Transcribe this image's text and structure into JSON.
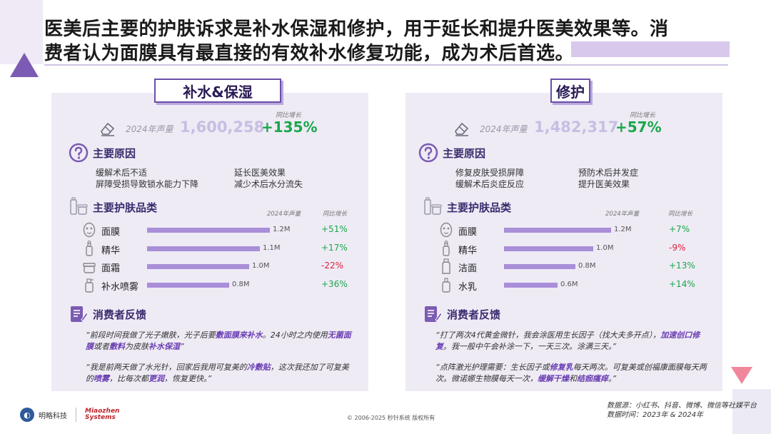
{
  "title": {
    "line1": "医美后主要的护肤诉求是补水保湿和修护，用于延长和提升医美效果等。消",
    "line2": "费者认为面膜具有最直接的有效补水修复功能，成为术后首选。"
  },
  "colors": {
    "accent": "#7b5bb3",
    "bar": "#a98ed8",
    "positive": "#1aa74a",
    "negative": "#e0203a"
  },
  "left": {
    "tag": "补水&保湿",
    "volume_label": "2024年声量",
    "volume_value": "1,600,258",
    "yoy_label": "同比增长",
    "yoy_value": "+135%",
    "reasons_title": "主要原因",
    "reasons": [
      "缓解术后不适",
      "延长医美效果",
      "屏障受损导致锁水能力下降",
      "减少术后水分流失"
    ],
    "products_title": "主要护肤品类",
    "col_volume": "2024年声量",
    "col_yoy": "同比增长",
    "products": [
      {
        "name": "面膜",
        "value": "1.2M",
        "num": 1.2,
        "yoy": "+51%",
        "sign": "pos",
        "icon": "mask-icon"
      },
      {
        "name": "精华",
        "value": "1.1M",
        "num": 1.1,
        "yoy": "+17%",
        "sign": "pos",
        "icon": "serum-icon"
      },
      {
        "name": "面霜",
        "value": "1.0M",
        "num": 1.0,
        "yoy": "-22%",
        "sign": "neg",
        "icon": "cream-jar-icon"
      },
      {
        "name": "补水喷雾",
        "value": "0.8M",
        "num": 0.8,
        "yoy": "+36%",
        "sign": "pos",
        "icon": "spray-icon"
      }
    ],
    "feedback_title": "消费者反馈",
    "quote1": [
      {
        "t": "“前段时间我做了光子嫩肤，光子后要",
        "b": false
      },
      {
        "t": "敷面膜来补水",
        "b": true
      },
      {
        "t": "。24小时之内使用",
        "b": false
      },
      {
        "t": "无菌面膜",
        "b": true
      },
      {
        "t": "或者",
        "b": false
      },
      {
        "t": "敷料",
        "b": true
      },
      {
        "t": "为皮肤",
        "b": false
      },
      {
        "t": "补水保湿",
        "b": true
      },
      {
        "t": "”",
        "b": false
      }
    ],
    "quote2": [
      {
        "t": "“我是前两天做了水光针，回家后我用可复美的",
        "b": false
      },
      {
        "t": "冷敷贴",
        "b": true
      },
      {
        "t": "，这次我还加了可复美的",
        "b": false
      },
      {
        "t": "喷雾",
        "b": true
      },
      {
        "t": "，比每次都",
        "b": false
      },
      {
        "t": "更润",
        "b": true
      },
      {
        "t": "，恢复更快。”",
        "b": false
      }
    ]
  },
  "right": {
    "tag": "修护",
    "volume_label": "2024年声量",
    "volume_value": "1,482,317",
    "yoy_label": "同比增长",
    "yoy_value": "+57%",
    "reasons_title": "主要原因",
    "reasons": [
      "修复皮肤受损屏障",
      "预防术后并发症",
      "缓解术后炎症反应",
      "提升医美效果"
    ],
    "products_title": "主要护肤品类",
    "col_volume": "2024年声量",
    "col_yoy": "同比增长",
    "products": [
      {
        "name": "面膜",
        "value": "1.2M",
        "num": 1.2,
        "yoy": "+7%",
        "sign": "pos",
        "icon": "mask-icon"
      },
      {
        "name": "精华",
        "value": "1.0M",
        "num": 1.0,
        "yoy": "-9%",
        "sign": "neg",
        "icon": "serum-icon"
      },
      {
        "name": "洁面",
        "value": "0.8M",
        "num": 0.8,
        "yoy": "+13%",
        "sign": "pos",
        "icon": "cleanser-icon"
      },
      {
        "name": "水乳",
        "value": "0.6M",
        "num": 0.6,
        "yoy": "+14%",
        "sign": "pos",
        "icon": "lotion-icon"
      }
    ],
    "feedback_title": "消费者反馈",
    "quote1": [
      {
        "t": "“打了两次4代黄金微针，我会涂医用生长因子（找大夫多开点），",
        "b": false
      },
      {
        "t": "加速创口修复",
        "b": true
      },
      {
        "t": "。我一般中午会补涂一下，一天三次。涂满三天。”",
        "b": false
      }
    ],
    "quote2": [
      {
        "t": "“点阵激光护理需要：生长因子或",
        "b": false
      },
      {
        "t": "修复乳",
        "b": true
      },
      {
        "t": "每天两次。可复美或创福康面膜每天两次。微诺娜生物膜每天一次，",
        "b": false
      },
      {
        "t": "缓解干燥",
        "b": true
      },
      {
        "t": "和",
        "b": false
      },
      {
        "t": "结痂瘙痒",
        "b": true
      },
      {
        "t": "。”",
        "b": false
      }
    ]
  },
  "footer": {
    "source_line1": "数据源：小红书、抖音、微博、微信等社媒平台",
    "source_line2": "数据时间：2023年 & 2024年",
    "copyright": "© 2006-2025 秒针系统 版权所有",
    "logo1_text": "明略科技",
    "logo2_line1": "Miaozhen",
    "logo2_line2": "Systems"
  }
}
